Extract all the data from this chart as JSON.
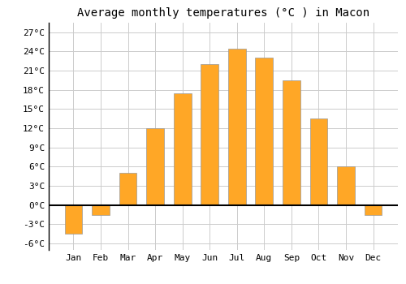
{
  "title": "Average monthly temperatures (°C ) in Macon",
  "months": [
    "Jan",
    "Feb",
    "Mar",
    "Apr",
    "May",
    "Jun",
    "Jul",
    "Aug",
    "Sep",
    "Oct",
    "Nov",
    "Dec"
  ],
  "values": [
    -4.5,
    -1.5,
    5.0,
    12.0,
    17.5,
    22.0,
    24.5,
    23.0,
    19.5,
    13.5,
    6.0,
    -1.5
  ],
  "bar_color": "#FFA726",
  "bar_edge_color": "#999999",
  "background_color": "#FFFFFF",
  "grid_color": "#CCCCCC",
  "yticks": [
    -6,
    -3,
    0,
    3,
    6,
    9,
    12,
    15,
    18,
    21,
    24,
    27
  ],
  "ytick_labels": [
    "-6°C",
    "-3°C",
    "0°C",
    "3°C",
    "6°C",
    "9°C",
    "12°C",
    "15°C",
    "18°C",
    "21°C",
    "24°C",
    "27°C"
  ],
  "ylim": [
    -7.0,
    28.5
  ],
  "title_fontsize": 10,
  "tick_fontsize": 8,
  "font_family": "monospace",
  "bar_width": 0.65
}
